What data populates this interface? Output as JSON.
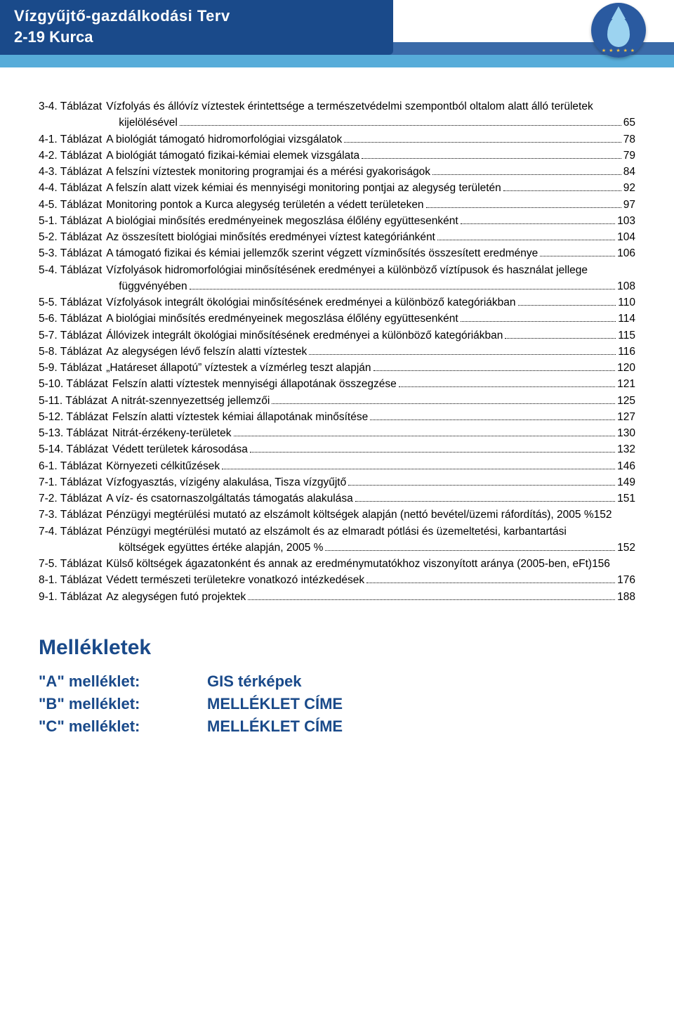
{
  "header": {
    "title_line1": "Vízgyűjtő-gazdálkodási Terv",
    "title_line2": "2-19 Kurca"
  },
  "colors": {
    "header_blue": "#1a4a8a",
    "ribbon_top": "#3a6aa8",
    "ribbon_bottom": "#57acd9",
    "droplet_fill": "#9cd3f0",
    "text": "#000000",
    "mellekletek_blue": "#1a4a8a",
    "page_bg": "#ffffff"
  },
  "typography": {
    "body_font": "Arial",
    "toc_fontsize_pt": 12,
    "header_fontsize_pt": 17,
    "mellekletek_title_pt": 22,
    "mellekletek_item_pt": 16
  },
  "toc": [
    {
      "label": "3-4. Táblázat",
      "title": "Vízfolyás és állóvíz víztestek érintettsége a természetvédelmi szempontból oltalom alatt álló területek",
      "page": ""
    },
    {
      "label": "3-4. Táblázat",
      "title": "kijelölésével",
      "page": "65",
      "continuation": true,
      "indent": true
    },
    {
      "label": "4-1. Táblázat",
      "title": "A biológiát támogató hidromorfológiai vizsgálatok",
      "page": "78"
    },
    {
      "label": "4-2. Táblázat",
      "title": "A biológiát támogató fizikai-kémiai elemek vizsgálata",
      "page": "79"
    },
    {
      "label": "4-3. Táblázat",
      "title": "A felszíni víztestek monitoring programjai és a mérési gyakoriságok",
      "page": "84"
    },
    {
      "label": "4-4. Táblázat",
      "title": "A felszín alatt vizek kémiai és mennyiségi monitoring pontjai az alegység területén",
      "page": "92",
      "tight": true
    },
    {
      "label": "4-5. Táblázat",
      "title": "Monitoring pontok a Kurca alegység területén a védett területeken",
      "page": "97"
    },
    {
      "label": "5-1. Táblázat",
      "title": "A biológiai minősítés eredményeinek megoszlása élőlény együttesenként",
      "page": "103"
    },
    {
      "label": "5-2. Táblázat",
      "title": "Az összesített biológiai minősítés eredményei víztest kategóriánként",
      "page": "104"
    },
    {
      "label": "5-3. Táblázat",
      "title": "A támogató fizikai és kémiai jellemzők szerint végzett vízminősítés összesített eredménye",
      "page": "106"
    },
    {
      "label": "5-4. Táblázat",
      "title": "Vízfolyások hidromorfológiai minősítésének eredményei a különböző víztípusok és használat jellege",
      "page": ""
    },
    {
      "label": "5-4. Táblázat",
      "title": "függvényében",
      "page": "108",
      "continuation": true,
      "indent": true
    },
    {
      "label": "5-5. Táblázat",
      "title": "Vízfolyások integrált ökológiai minősítésének eredményei a különböző kategóriákban",
      "page": "110"
    },
    {
      "label": "5-6. Táblázat",
      "title": "A biológiai minősítés eredményeinek megoszlása élőlény együttesenként",
      "page": "114"
    },
    {
      "label": "5-7. Táblázat",
      "title": "Állóvizek integrált ökológiai minősítésének eredményei a különböző kategóriákban",
      "page": "115"
    },
    {
      "label": "5-8. Táblázat",
      "title": "Az alegységen lévő felszín alatti víztestek",
      "page": "116"
    },
    {
      "label": "5-9. Táblázat",
      "title": "„Határeset állapotú” víztestek a vízmérleg teszt alapján",
      "page": "120"
    },
    {
      "label": "5-10. Táblázat",
      "title": "Felszín alatti víztestek mennyiségi állapotának összegzése",
      "page": "121"
    },
    {
      "label": "5-11. Táblázat",
      "title": "A nitrát-szennyezettség jellemzői",
      "page": "125"
    },
    {
      "label": "5-12. Táblázat",
      "title": "Felszín alatti víztestek kémiai állapotának minősítése",
      "page": "127"
    },
    {
      "label": "5-13. Táblázat",
      "title": "Nitrát-érzékeny-területek",
      "page": "130"
    },
    {
      "label": "5-14. Táblázat",
      "title": "Védett területek károsodása",
      "page": "132"
    },
    {
      "label": "6-1. Táblázat",
      "title": "Környezeti célkitűzések",
      "page": "146"
    },
    {
      "label": "7-1. Táblázat",
      "title": "Vízfogyasztás, vízigény alakulása, Tisza vízgyűjtő",
      "page": "149"
    },
    {
      "label": "7-2. Táblázat",
      "title": "A víz- és csatornaszolgáltatás támogatás alakulása",
      "page": "151"
    },
    {
      "label": "7-3. Táblázat",
      "title": "Pénzügyi megtérülési mutató az elszámolt költségek alapján (nettó bevétel/üzemi ráfordítás), 2005 %",
      "page": "152",
      "nodots": true
    },
    {
      "label": "7-4. Táblázat",
      "title": "Pénzügyi megtérülési mutató az elszámolt és az elmaradt pótlási és üzemeltetési, karbantartási",
      "page": ""
    },
    {
      "label": "7-4. Táblázat",
      "title": "költségek együttes értéke alapján, 2005 %",
      "page": "152",
      "continuation": true,
      "indent": true
    },
    {
      "label": "7-5. Táblázat",
      "title": "Külső költségek ágazatonként és annak az eredménymutatókhoz viszonyított aránya (2005-ben, eFt)",
      "page": "156",
      "nodots": true
    },
    {
      "label": "8-1. Táblázat",
      "title": "Védett természeti területekre vonatkozó intézkedések",
      "page": "176"
    },
    {
      "label": "9-1. Táblázat",
      "title": "Az alegységen futó projektek",
      "page": "188"
    }
  ],
  "mellekletek": {
    "title": "Mellékletek",
    "items": [
      {
        "key": "\"A\" melléklet:",
        "value": "GIS térképek"
      },
      {
        "key": "\"B\" melléklet:",
        "value": "MELLÉKLET CÍME"
      },
      {
        "key": "\"C\" melléklet:",
        "value": "MELLÉKLET CÍME"
      }
    ]
  }
}
